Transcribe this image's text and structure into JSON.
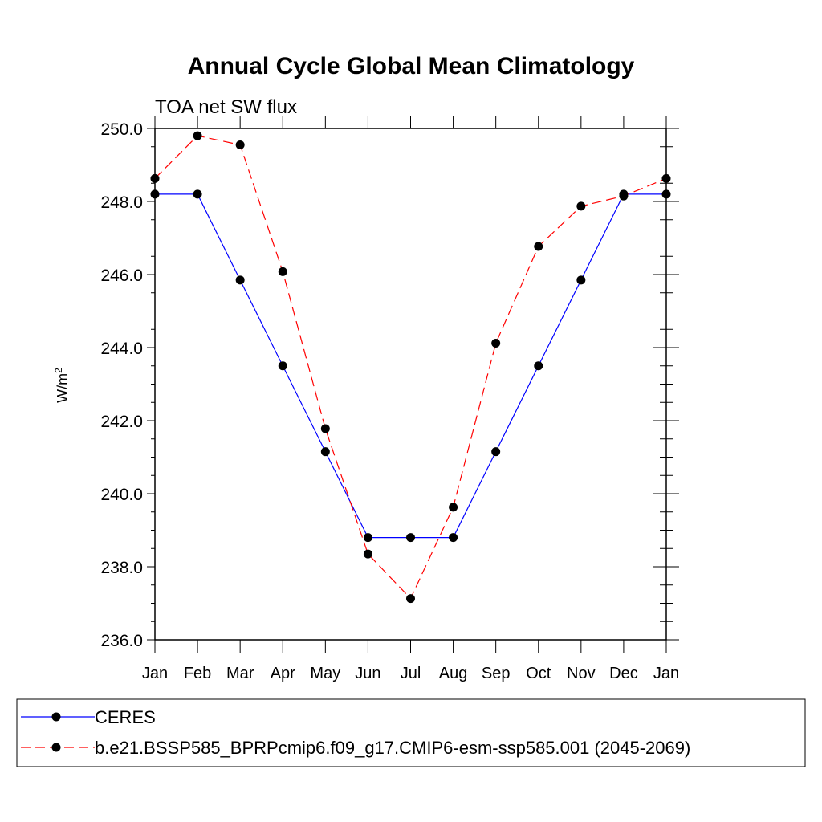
{
  "chart_data": {
    "type": "line",
    "title": "Annual Cycle Global Mean Climatology",
    "subtitle": "TOA net SW flux",
    "ylabel": "W/m",
    "ylabel_sup": "2",
    "categories": [
      "Jan",
      "Feb",
      "Mar",
      "Apr",
      "May",
      "Jun",
      "Jul",
      "Aug",
      "Sep",
      "Oct",
      "Nov",
      "Dec",
      "Jan"
    ],
    "ylim": [
      236.0,
      250.0
    ],
    "yticks": [
      "236.0",
      "238.0",
      "240.0",
      "242.0",
      "244.0",
      "246.0",
      "248.0",
      "250.0"
    ],
    "grid": false,
    "legend_position": "bottom",
    "series": [
      {
        "name": "CERES",
        "color": "#0000ff",
        "style": "solid",
        "values": [
          248.2,
          248.2,
          245.85,
          243.5,
          241.15,
          238.8,
          238.8,
          238.8,
          241.15,
          243.5,
          245.85,
          248.2,
          248.2
        ]
      },
      {
        "name": "b.e21.BSSP585_BPRPcmip6.f09_g17.CMIP6-esm-ssp585.001 (2045-2069)",
        "color": "#ff0000",
        "style": "dashed",
        "values": [
          248.63,
          249.8,
          249.55,
          246.08,
          241.78,
          238.35,
          237.13,
          239.63,
          244.12,
          246.77,
          247.87,
          248.15,
          248.63
        ]
      }
    ]
  }
}
